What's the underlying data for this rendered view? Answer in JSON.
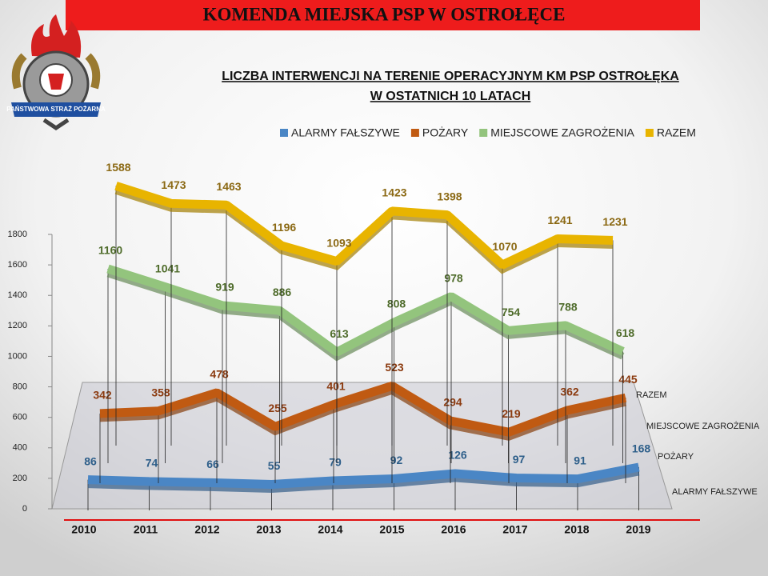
{
  "header": {
    "title": "KOMENDA  MIEJSKA  PSP W OSTROŁĘCE",
    "logo_text": "PAŃSTWOWA STRAŻ POŻARNA"
  },
  "chart_data": {
    "type": "line3d",
    "title": "LICZBA INTERWENCJI NA TERENIE OPERACYJNYM KM PSP OSTROŁĘKA",
    "subtitle": "W OSTATNICH 10 LATACH",
    "categories": [
      "2010",
      "2011",
      "2012",
      "2013",
      "2014",
      "2015",
      "2016",
      "2017",
      "2018",
      "2019"
    ],
    "series": [
      {
        "name": "ALARMY FAŁSZYWE",
        "color": "#4a86c5",
        "label_color": "#2e5f8a",
        "values": [
          86,
          74,
          66,
          55,
          79,
          92,
          126,
          97,
          91,
          168
        ]
      },
      {
        "name": "POŻARY",
        "color": "#c05a12",
        "label_color": "#8b3a0f",
        "values": [
          342,
          358,
          478,
          255,
          401,
          523,
          294,
          219,
          362,
          445
        ]
      },
      {
        "name": "MIEJSCOWE ZAGROŻENIA",
        "color": "#93c47d",
        "label_color": "#4e6b2a",
        "values": [
          1160,
          1041,
          919,
          886,
          613,
          808,
          978,
          754,
          788,
          618
        ]
      },
      {
        "name": "RAZEM",
        "color": "#e8b400",
        "label_color": "#8b6914",
        "values": [
          1588,
          1473,
          1463,
          1196,
          1093,
          1423,
          1398,
          1070,
          1241,
          1231
        ]
      }
    ],
    "ylim": [
      0,
      1800
    ],
    "yticks": [
      0,
      200,
      400,
      600,
      800,
      1000,
      1200,
      1400,
      1600,
      1800
    ],
    "legend": "top"
  }
}
